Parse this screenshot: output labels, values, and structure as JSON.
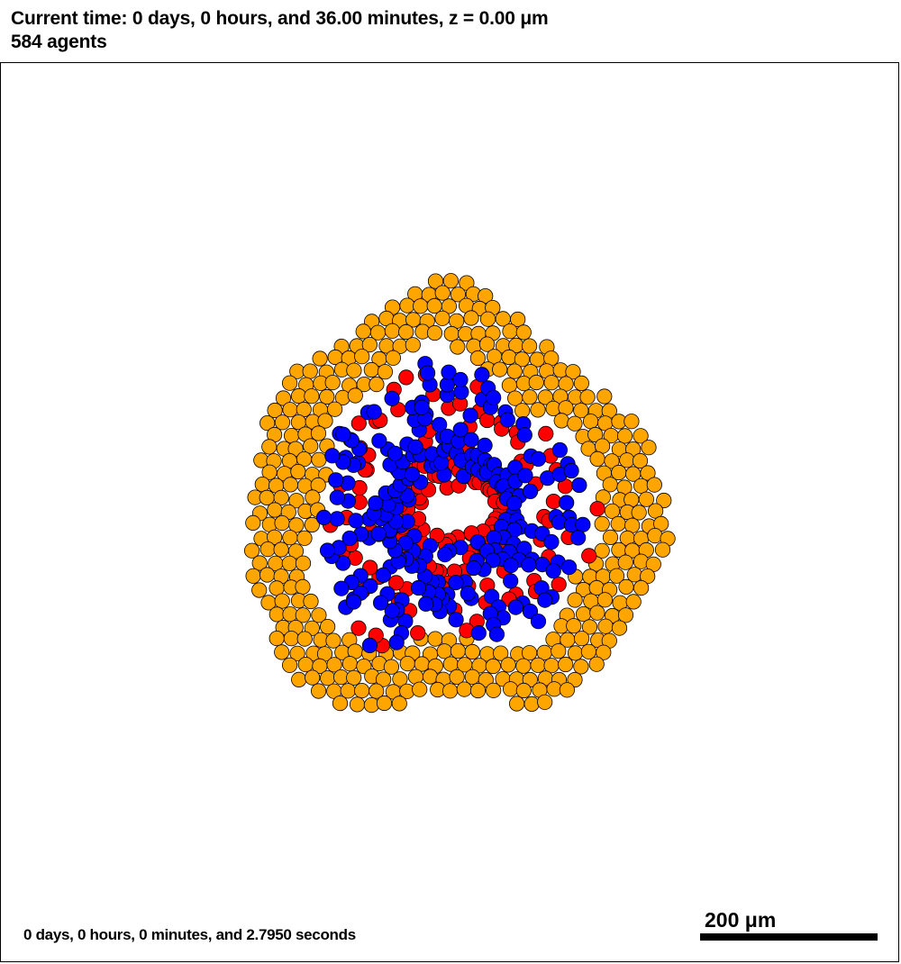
{
  "header": {
    "time_line": "Current time: 0 days, 0 hours, and 36.00 minutes, z = 0.00 μm",
    "agents_line": "584 agents"
  },
  "footer": {
    "elapsed_time": "0 days, 0 hours, 0 minutes, and 2.7950 seconds"
  },
  "scale_bar": {
    "label": "200 μm"
  },
  "colors": {
    "outer_cells": "#ffa500",
    "red_cells": "#ff0000",
    "blue_cells": "#0000ff",
    "cell_outline": "#000000",
    "background": "#ffffff"
  }
}
